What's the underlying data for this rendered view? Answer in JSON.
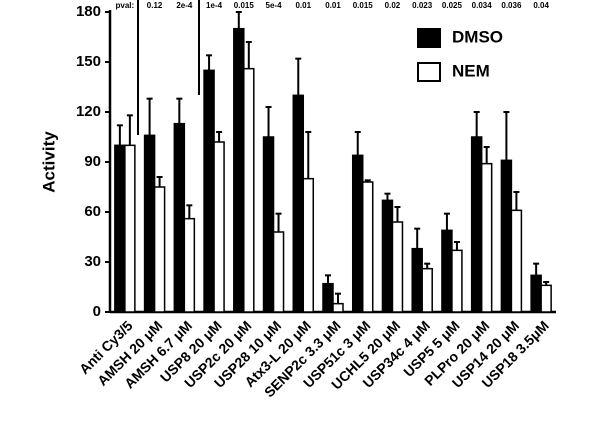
{
  "chart_data": {
    "type": "bar",
    "y_label": "Activity",
    "categories": [
      "Anti Cy3/5",
      "AMSH 20 μM",
      "AMSH 6.7 μM",
      "USP8 20 μM",
      "USP2c 20 μM",
      "USP28 10 μM",
      "Atx3-L 20 μM",
      "SENP2c 3.3 μM",
      "USP51c 3 μM",
      "UCHL5 20 μM",
      "USP34c 4 μM",
      "USP5 5 μM",
      "PLPro 20 μM",
      "USP14 20 μM",
      "USP18 3.5μM"
    ],
    "series": [
      {
        "name": "DMSO",
        "color": "#000000",
        "values": [
          100,
          106,
          113,
          145,
          170,
          105,
          130,
          17,
          94,
          67,
          38,
          49,
          105,
          91,
          22
        ],
        "errors": [
          12,
          22,
          15,
          9,
          10,
          18,
          22,
          5,
          14,
          4,
          12,
          10,
          15,
          29,
          7
        ]
      },
      {
        "name": "NEM",
        "color": "#ffffff",
        "values": [
          100,
          75,
          56,
          102,
          146,
          48,
          80,
          5,
          78,
          54,
          26,
          37,
          89,
          61,
          16
        ],
        "errors": [
          18,
          6,
          8,
          6,
          16,
          11,
          28,
          6,
          1,
          9,
          3,
          5,
          10,
          11,
          2
        ]
      }
    ],
    "pval_label": "pval:",
    "pvals": [
      "0.12",
      "2e-4",
      "1e-4",
      "0.015",
      "5e-4",
      "0.01",
      "0.01",
      "0.015",
      "0.02",
      "0.023",
      "0.025",
      "0.034",
      "0.036",
      "0.04"
    ],
    "ylim": [
      0,
      180
    ],
    "yticks": [
      0,
      30,
      60,
      90,
      120,
      150,
      180
    ],
    "legend": "top-right"
  }
}
